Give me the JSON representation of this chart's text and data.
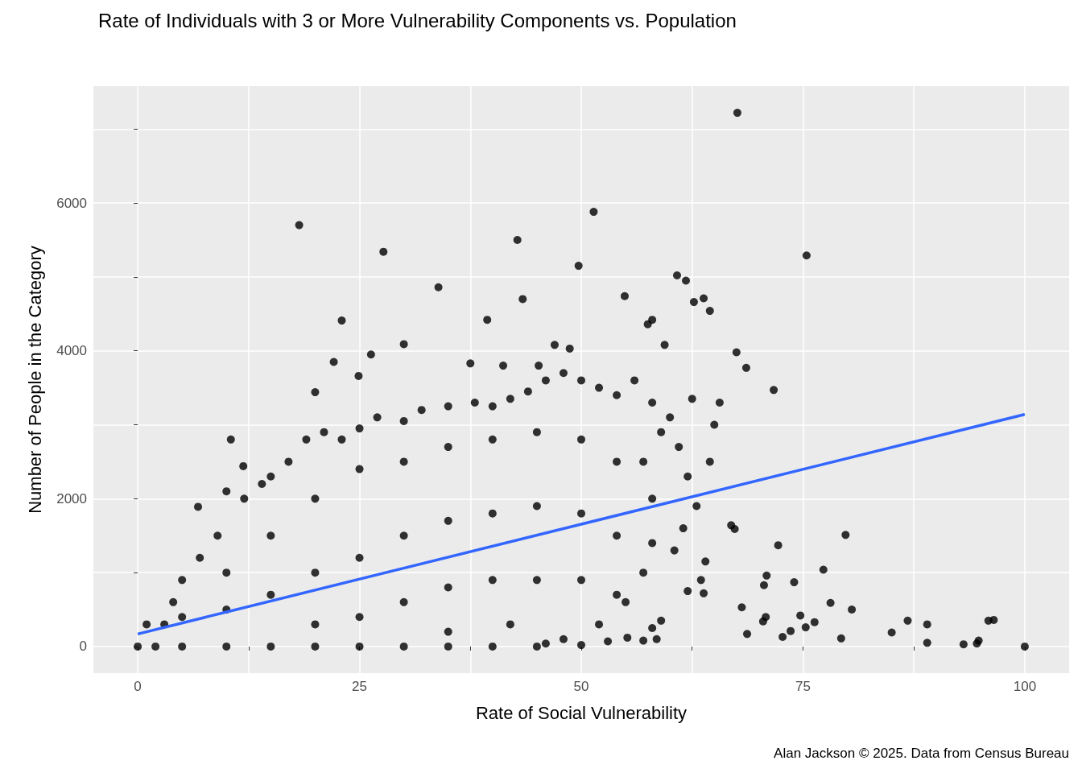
{
  "chart_data": {
    "type": "scatter",
    "title": "Rate of Individuals with 3 or More Vulnerability Components vs. Population",
    "xlabel": "Rate of Social Vulnerability",
    "ylabel": "Number of People in the Category",
    "annotations": [
      "Alan Jackson © 2025. Data from Census Bureau"
    ],
    "xlim": [
      -5,
      105
    ],
    "xticks": [
      0,
      {
        "value": 12.5,
        "label": null
      },
      25,
      {
        "value": 37.5,
        "label": null
      },
      50,
      {
        "value": 62.5,
        "label": null
      },
      75,
      {
        "value": 87.5,
        "label": null
      },
      100
    ],
    "ylim": [
      -360,
      7580
    ],
    "yticks": [
      0,
      {
        "value": 1000,
        "label": null
      },
      2000,
      {
        "value": 3000,
        "label": null
      },
      4000,
      {
        "value": 5000,
        "label": null
      },
      6000,
      {
        "value": 7000,
        "label": null
      }
    ],
    "grid": true,
    "series": [
      {
        "color": "#000000",
        "marker": "circle",
        "x": [
          67.6,
          51.4,
          18.2,
          42.8,
          27.7,
          49.7,
          75.4,
          60.8,
          61.8,
          33.9,
          62.7,
          63.8,
          54.9,
          43.4,
          23.0,
          39.4,
          64.5,
          67.5,
          71.7,
          68.6,
          30.0,
          26.3,
          22.1,
          20.0,
          10.5,
          6.8,
          11.9,
          24.9,
          58.0,
          57.5,
          59.4,
          47.0,
          48.7,
          37.5,
          41.2,
          45.2,
          65.6,
          65.0,
          64.5,
          66.9,
          67.3,
          79.8,
          72.2,
          70.9,
          77.3,
          74.0,
          70.6,
          78.1,
          80.5,
          68.1,
          70.8,
          74.7,
          70.5,
          76.3,
          75.3,
          73.6,
          72.7,
          68.7,
          79.3,
          86.8,
          89.0,
          85.0,
          89.0,
          93.1,
          94.8,
          94.6,
          95.9,
          96.5,
          100,
          64.0,
          63.5,
          62.0,
          63.8,
          59.0,
          58.0,
          57.0,
          58.5,
          55.2,
          53.0,
          50.0,
          46.0,
          60.5,
          61.5,
          63.0,
          62.0,
          61.0,
          60.0,
          62.5,
          0,
          1,
          3,
          4,
          5,
          7,
          9,
          10,
          12,
          14,
          15,
          17,
          19,
          21,
          23,
          25,
          27,
          30,
          32,
          35,
          38,
          40,
          42,
          44,
          46,
          48,
          50,
          52,
          54,
          56,
          58,
          59,
          2,
          5,
          10,
          15,
          20,
          25,
          30,
          35,
          40,
          45,
          48,
          52,
          55,
          57,
          58,
          58,
          57,
          5,
          10,
          10,
          15,
          15,
          20,
          20,
          25,
          25,
          25,
          30,
          30,
          30,
          35,
          35,
          35,
          40,
          40,
          40,
          45,
          45,
          45,
          50,
          50,
          50,
          54,
          54,
          54,
          20,
          35,
          42
        ],
        "values": [
          7220,
          5880,
          5700,
          5500,
          5340,
          5150,
          5290,
          5020,
          4950,
          4860,
          4660,
          4710,
          4740,
          4700,
          4410,
          4420,
          4540,
          3980,
          3470,
          3770,
          4090,
          3950,
          3850,
          3440,
          2800,
          1890,
          2440,
          3660,
          4420,
          4360,
          4080,
          4080,
          4030,
          3830,
          3800,
          3800,
          3300,
          3000,
          2500,
          1640,
          1590,
          1510,
          1370,
          960,
          1040,
          870,
          830,
          590,
          500,
          530,
          400,
          420,
          340,
          330,
          260,
          210,
          130,
          170,
          110,
          350,
          300,
          190,
          50,
          30,
          80,
          40,
          350,
          360,
          0,
          1150,
          900,
          750,
          720,
          350,
          250,
          80,
          100,
          120,
          70,
          20,
          40,
          1300,
          1600,
          1900,
          2300,
          2700,
          3100,
          3350,
          0,
          300,
          300,
          600,
          900,
          1200,
          1500,
          2100,
          2000,
          2200,
          2300,
          2500,
          2800,
          2900,
          2800,
          2950,
          3100,
          3050,
          3200,
          3250,
          3300,
          3250,
          3350,
          3450,
          3600,
          3700,
          3600,
          3500,
          3400,
          3600,
          3300,
          2900,
          0,
          0,
          0,
          0,
          0,
          0,
          0,
          0,
          0,
          0,
          100,
          300,
          600,
          1000,
          1400,
          2000,
          2500,
          400,
          1000,
          500,
          1500,
          700,
          2000,
          1000,
          2400,
          1200,
          400,
          2500,
          1500,
          600,
          2700,
          1700,
          800,
          2800,
          1800,
          900,
          2900,
          1900,
          900,
          2800,
          1800,
          900,
          2500,
          1500,
          700,
          300,
          200,
          300
        ]
      },
      {
        "type": "line",
        "color": "#3366ff",
        "x": [
          0,
          100
        ],
        "values": [
          170,
          3140
        ]
      }
    ]
  }
}
